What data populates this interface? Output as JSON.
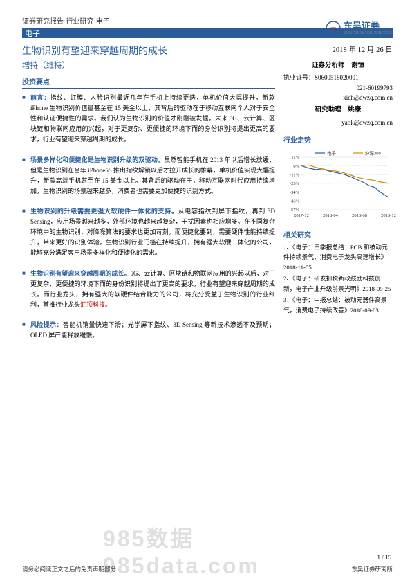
{
  "header": {
    "breadcrumb": "证券研究报告·行业研究·电子"
  },
  "stripe": {
    "label": "电子"
  },
  "logo": {
    "cn": "东吴证券",
    "en": "SOOCHOW SECURITIES",
    "icon": "scs-logo-icon"
  },
  "main": {
    "title": "生物识别有望迎来穿越周期的成长",
    "rating": "增持（维持）",
    "section": "投资要点",
    "bullets": [
      {
        "lead": "前言：",
        "body": "指纹、虹膜、人脸识别最近几年在手机上持续更迭，单机价值大幅提升，新款 iPhone 生物识别价值量甚至在 15 美金以上，其背后的驱动在于移动互联网个人对于安全性和认证便捷性的需求。我们认为生物识别的价值才刚刚被发掘，未来 5G、云计算、区块链和物联网应用的兴起，对于更复杂、更便捷的环境下而的身份识别将提出更高的要求，行业有望迎来穿越周期的成长。"
      },
      {
        "lead": "场景多样化和便捷化是生物识别升级的双驱动。",
        "body": "虽然智能手机在 2013 年以后增长放缓，但是生物识别在当年 iPhone5S 推出指纹解锁以后才拉开成长的帷幕，单机价值实现大幅提升，新款高端手机甚至在 15 美金以上。其背后的驱动在于，移动互联网时代应用持续增加，生物识别的场景越来越多，消费者也需要更加便捷的识别方式。"
      },
      {
        "lead": "生物识别的升级需要更强大软硬件一体化的支持。",
        "body": "从电容指纹到屏下指纹，再到 3D Sensing，应用场景越来越多，外部环境也越来越复杂，干扰因素也相应增多。在不同复杂环境中的生物识别，对降噪算法的要求也更加苛刻。而便捷化要到，需要硬件性能持续提升，带来更好的识别体验。生物识别行业门槛在持续提升，拥有强大软硬一体化的公司，能够充分满足客户场景多样化和便捷化的需求。"
      },
      {
        "lead": "生物识别有望迎来穿越周期的成长。",
        "body": "5G、云计算、区块链和物联网应用的兴起以后，对于更复杂、更便捷的环境下而的身份识别将提出了更高的要求，行业有望迎来穿越周期的成长。而行业龙头，拥有强大的软硬件结合能力的公司，将充分受益于生物识别的行业红利，首推行业龙头",
        "tail": "汇顶科技。"
      },
      {
        "lead": "风险提示：",
        "body": "智能机销量快速下滑；光学屏下指纹、3D Sensing 等新技术渗透不及预期；OLED 屏产能释放缓慢。"
      }
    ]
  },
  "side": {
    "date": "2018 年 12 月 26 日",
    "analyst": {
      "title": "证券分析师　谢恒",
      "license": "执业证号：S0600518020001",
      "phone": "021-60199793",
      "email": "xieh@dwzq.com.cn",
      "assistant_title": "研究助理　姚康",
      "assistant_email": "yaok@dwzq.com.cn"
    },
    "trend": {
      "head": "行业走势",
      "chart": {
        "type": "line",
        "series": [
          {
            "name": "电子",
            "color": "#2a5c9a"
          },
          {
            "name": "沪深300",
            "color": "#d98a00"
          }
        ],
        "x_labels": [
          "2017-12",
          "2018-04",
          "2018-08",
          "2018-12"
        ],
        "y_ticks": [
          "11%",
          "0%",
          "-11%",
          "-23%",
          "-34%",
          "-46%",
          "-57%"
        ],
        "y_range": [
          -57,
          11
        ],
        "grid_color": "#cccccc",
        "background_color": "#ffffff",
        "axis_color": "#666666",
        "label_fontsize": 6.5,
        "line_width": 1.2,
        "electronics_path": [
          [
            0,
            0
          ],
          [
            8,
            -3
          ],
          [
            16,
            -5
          ],
          [
            24,
            -4
          ],
          [
            32,
            -7
          ],
          [
            40,
            -9
          ],
          [
            48,
            -11
          ],
          [
            56,
            -14
          ],
          [
            64,
            -18
          ],
          [
            72,
            -22
          ],
          [
            78,
            -26
          ],
          [
            84,
            -28
          ],
          [
            90,
            -34
          ],
          [
            96,
            -38
          ],
          [
            100,
            -41
          ]
        ],
        "hs300_path": [
          [
            0,
            0
          ],
          [
            8,
            1
          ],
          [
            16,
            -2
          ],
          [
            24,
            -4
          ],
          [
            32,
            -6
          ],
          [
            40,
            -7
          ],
          [
            48,
            -9
          ],
          [
            56,
            -12
          ],
          [
            64,
            -15
          ],
          [
            72,
            -17
          ],
          [
            78,
            -18
          ],
          [
            84,
            -19
          ],
          [
            90,
            -21
          ],
          [
            96,
            -22
          ],
          [
            100,
            -23
          ]
        ]
      }
    },
    "related": {
      "head": "相关研究",
      "items": [
        "1、《电子：三季报总结：PCB 和被动元件持续景气，消费电子龙头高速增长》2018-11-05",
        "2、《电子：研发扣税新政鼓励科技创新，电子产业升级前景光明》2018-09-25",
        "3、《电子：中报总结：被动元器件高景气，消费电子持续改善》2018-09-03"
      ]
    }
  },
  "pagenum": "1 / 15",
  "footer": {
    "left": "请务必阅读正文之后的免责声明部分",
    "right": "东吴证券研究所"
  },
  "watermark": "985数据 985data.com"
}
